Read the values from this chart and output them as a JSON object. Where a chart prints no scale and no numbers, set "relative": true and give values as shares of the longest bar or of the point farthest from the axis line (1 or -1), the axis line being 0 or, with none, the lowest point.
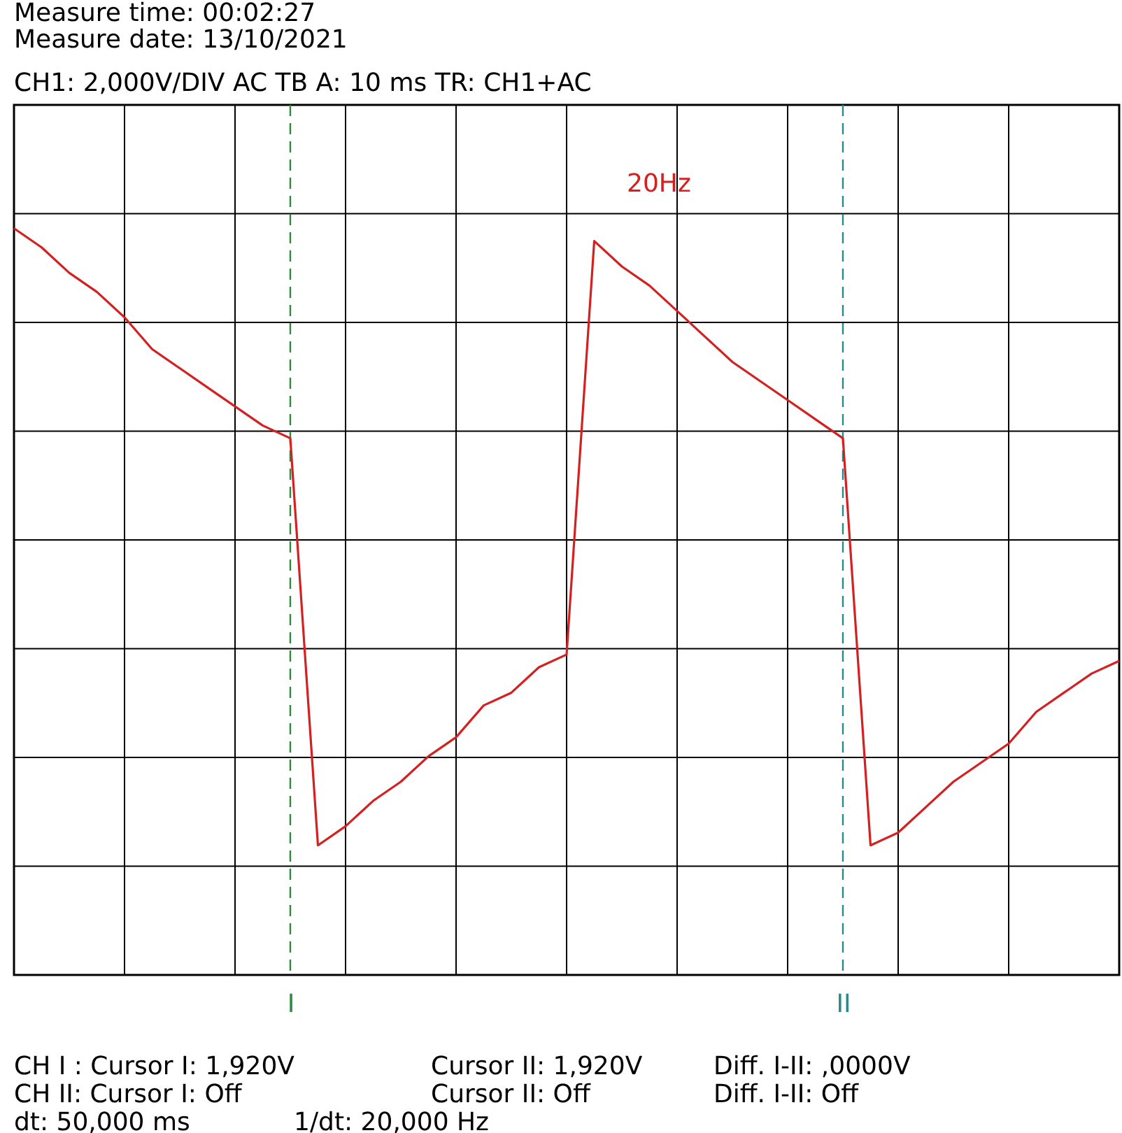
{
  "chart_data": {
    "type": "line",
    "title": "Measure time: 00:02:27",
    "subtitle": "Measure date: 13/10/2021",
    "relative": true,
    "categories": [
      null,
      null,
      null,
      null,
      null,
      null,
      null,
      null,
      null,
      null,
      "I",
      null,
      null,
      null,
      null,
      null,
      null,
      null,
      null,
      null,
      null,
      null,
      null,
      null,
      null,
      null,
      null,
      null,
      null,
      null,
      "II",
      null,
      null,
      null,
      null,
      null,
      null,
      null,
      null,
      null,
      null
    ],
    "series": [
      {
        "color": "#d42020",
        "values": [
          1,
          0.97,
          0.93,
          0.9,
          0.86,
          0.81,
          0.78,
          0.75,
          0.72,
          0.69,
          0.67,
          0.03,
          0.06,
          0.1,
          0.13,
          0.17,
          0.2,
          0.25,
          0.27,
          0.31,
          0.33,
          0.98,
          0.94,
          0.91,
          0.87,
          0.83,
          0.79,
          0.76,
          0.73,
          0.7,
          0.67,
          0.03,
          0.05,
          0.09,
          0.13,
          0.16,
          0.19,
          0.24,
          0.27,
          0.3,
          0.32
        ]
      }
    ],
    "tick_labels": "x",
    "grid": true,
    "marker": "none",
    "line_style": "solid",
    "ref_lines": [
      {
        "axis": "x",
        "value": "I",
        "color": "#2e8b3e",
        "line_style": "dashed"
      },
      {
        "axis": "x",
        "value": "II",
        "color": "#2a8a8a",
        "line_style": "dashed"
      }
    ],
    "annotations": [
      "CH1: 2,000V/DIV AC     TB A: 10 ms  TR: CH1+AC",
      "20Hz",
      "CH I :  Cursor I: 1,920V",
      "Cursor II: 1,920V",
      "Diff. I-II: ,0000V",
      "CH II:  Cursor I: Off",
      "Cursor II: Off",
      "Diff. I-II: Off",
      "dt: 50,000 ms",
      "1/dt: 20,000 Hz"
    ]
  }
}
